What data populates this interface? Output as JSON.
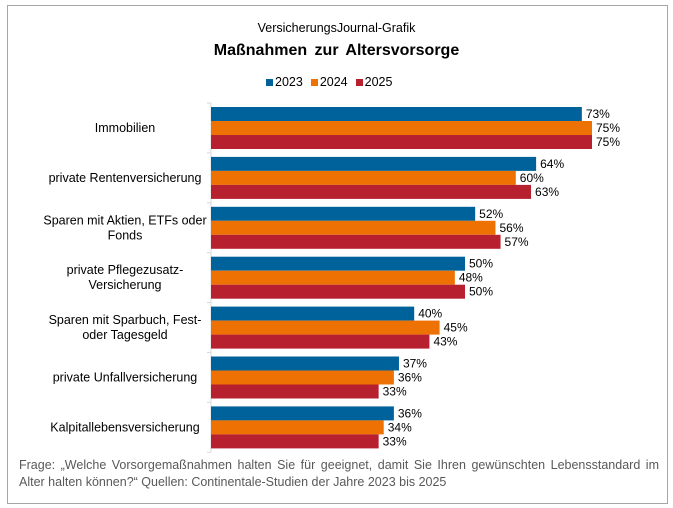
{
  "source": "VersicherungsJournal-Grafik",
  "footer": "Frage: „Welche Vorsorgemaßnahmen halten Sie für geeignet, damit Sie Ihren gewünschten Lebensstandard im Alter halten können?“ Quellen: Continentale-Studien der Jahre 2023 bis 2025",
  "chart_data": {
    "type": "bar",
    "orientation": "horizontal",
    "title": "Maßnahmen zur Altersvorsorge",
    "categories": [
      [
        "Immobilien"
      ],
      [
        "private Rentenversicherung"
      ],
      [
        "Sparen mit Aktien, ETFs oder",
        "Fonds"
      ],
      [
        "private Pflegezusatz-",
        "Versicherung"
      ],
      [
        "Sparen mit Sparbuch, Fest-",
        "oder Tagesgeld"
      ],
      [
        "private Unfallversicherung"
      ],
      [
        "Kalpitallebensversicherung"
      ]
    ],
    "series": [
      {
        "name": "2023",
        "color": "#00629b",
        "values": [
          73,
          64,
          52,
          50,
          40,
          37,
          36
        ]
      },
      {
        "name": "2024",
        "color": "#ed7203",
        "values": [
          75,
          60,
          56,
          48,
          45,
          36,
          34
        ]
      },
      {
        "name": "2025",
        "color": "#b7202e",
        "values": [
          75,
          63,
          57,
          50,
          43,
          33,
          33
        ]
      }
    ],
    "value_suffix": "%",
    "legend": "top",
    "grid": false,
    "xlim": [
      0,
      80
    ]
  }
}
